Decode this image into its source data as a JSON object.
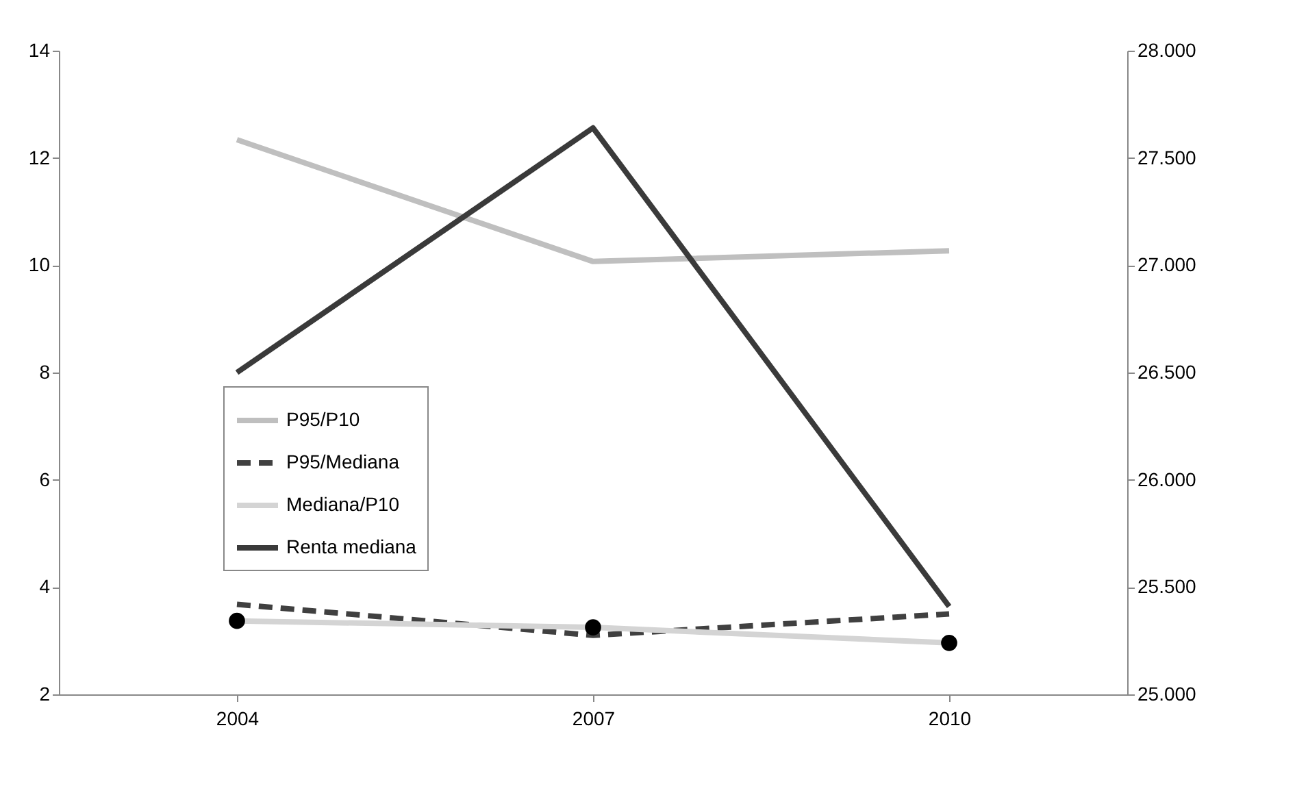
{
  "chart_data": {
    "type": "line",
    "categories": [
      "2004",
      "2007",
      "2010"
    ],
    "series": [
      {
        "name": "P95/P10",
        "color": "#bfbfbf",
        "values": [
          12.34,
          10.07,
          10.27
        ],
        "line_style": "solid",
        "marker": "none"
      },
      {
        "name": "P95/Mediana",
        "color": "#404040",
        "values": [
          3.68,
          3.1,
          3.5
        ],
        "line_style": "dashed",
        "marker": "none"
      },
      {
        "name": "Mediana/P10",
        "color": "#d4d4d4",
        "values": [
          3.37,
          3.25,
          2.96
        ],
        "line_style": "solid",
        "marker": "circle"
      },
      {
        "name": "Renta mediana",
        "color": "#3a3a3a",
        "values": [
          26500,
          27640,
          25410
        ],
        "axis": "y2",
        "line_style": "solid",
        "marker": "none"
      }
    ],
    "ylim": [
      2,
      14
    ],
    "yticks": [
      2,
      4,
      6,
      8,
      10,
      12,
      14
    ],
    "y2lim": [
      25000,
      28000
    ],
    "y2ticks": [
      {
        "value": 25000,
        "label": "25.000"
      },
      {
        "value": 25500,
        "label": "25.500"
      },
      {
        "value": 26000,
        "label": "26.000"
      },
      {
        "value": 26500,
        "label": "26.500"
      },
      {
        "value": 27000,
        "label": "27.000"
      },
      {
        "value": 27500,
        "label": "27.500"
      },
      {
        "value": 28000,
        "label": "28.000"
      }
    ],
    "grid": false,
    "legend": "left"
  }
}
